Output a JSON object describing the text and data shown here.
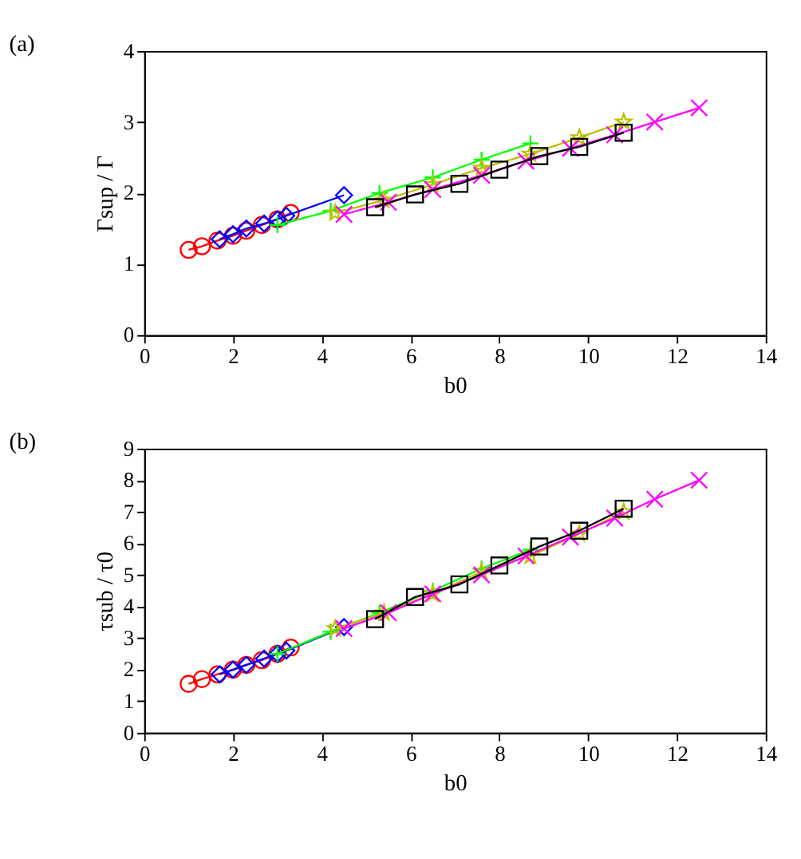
{
  "chart_data": [
    {
      "type": "line",
      "title": "(a)",
      "xlabel": "b0",
      "ylabel": "Γsup / Γ",
      "xlim": [
        0,
        14
      ],
      "xticks": [
        0,
        2,
        4,
        6,
        8,
        10,
        12,
        14
      ],
      "ylim": [
        0,
        4
      ],
      "yticks": [
        0,
        1,
        2,
        3,
        4
      ],
      "grid": false,
      "series": [
        {
          "color": "#ff0000",
          "marker": "circle",
          "x": [
            1.0,
            1.3,
            1.65,
            2.0,
            2.3,
            2.65,
            3.0,
            3.3
          ],
          "values": [
            1.2,
            1.25,
            1.33,
            1.4,
            1.47,
            1.55,
            1.63,
            1.72
          ]
        },
        {
          "color": "#0000ff",
          "marker": "diamond",
          "x": [
            1.7,
            2.0,
            2.3,
            2.7,
            3.0,
            3.2,
            4.5
          ],
          "values": [
            1.35,
            1.42,
            1.5,
            1.57,
            1.63,
            1.68,
            1.97
          ]
        },
        {
          "color": "#00ff00",
          "marker": "plus",
          "x": [
            3.0,
            4.2,
            5.3,
            6.5,
            7.6,
            8.7
          ],
          "values": [
            1.55,
            1.75,
            2.0,
            2.22,
            2.47,
            2.7
          ]
        },
        {
          "color": "#bfbf00",
          "marker": "star",
          "x": [
            4.3,
            5.4,
            6.5,
            7.6,
            8.7,
            9.8,
            10.8
          ],
          "values": [
            1.72,
            1.9,
            2.12,
            2.35,
            2.55,
            2.78,
            3.0
          ]
        },
        {
          "color": "#ff00ff",
          "marker": "x",
          "x": [
            4.5,
            5.5,
            6.5,
            7.6,
            8.6,
            9.6,
            10.6,
            11.5,
            12.5
          ],
          "values": [
            1.7,
            1.87,
            2.05,
            2.25,
            2.45,
            2.63,
            2.82,
            3.0,
            3.2
          ]
        },
        {
          "color": "#000000",
          "marker": "square",
          "x": [
            5.2,
            6.1,
            7.1,
            8.0,
            8.9,
            9.8,
            10.8
          ],
          "values": [
            1.8,
            1.98,
            2.13,
            2.33,
            2.52,
            2.65,
            2.85
          ]
        }
      ]
    },
    {
      "type": "line",
      "title": "(b)",
      "xlabel": "b0",
      "ylabel": "τsub / τ0",
      "xlim": [
        0,
        14
      ],
      "xticks": [
        0,
        2,
        4,
        6,
        8,
        10,
        12,
        14
      ],
      "ylim": [
        0,
        9
      ],
      "yticks": [
        0,
        1,
        2,
        3,
        4,
        5,
        6,
        7,
        8,
        9
      ],
      "grid": false,
      "series": [
        {
          "color": "#ff0000",
          "marker": "circle",
          "x": [
            1.0,
            1.3,
            1.65,
            2.0,
            2.3,
            2.65,
            3.0,
            3.3
          ],
          "values": [
            1.55,
            1.7,
            1.85,
            2.0,
            2.15,
            2.3,
            2.5,
            2.7
          ]
        },
        {
          "color": "#0000ff",
          "marker": "diamond",
          "x": [
            1.7,
            2.0,
            2.3,
            2.7,
            3.0,
            3.2,
            4.5
          ],
          "values": [
            1.85,
            2.0,
            2.15,
            2.35,
            2.5,
            2.6,
            3.35
          ]
        },
        {
          "color": "#00ff00",
          "marker": "plus",
          "x": [
            3.0,
            4.2,
            5.3,
            6.5,
            7.6,
            8.7
          ],
          "values": [
            2.5,
            3.2,
            3.8,
            4.5,
            5.2,
            5.8
          ]
        },
        {
          "color": "#bfbf00",
          "marker": "star",
          "x": [
            4.3,
            5.4,
            6.5,
            7.6,
            8.7,
            9.8,
            10.8
          ],
          "values": [
            3.3,
            3.8,
            4.4,
            5.1,
            5.6,
            6.3,
            7.0
          ]
        },
        {
          "color": "#ff00ff",
          "marker": "x",
          "x": [
            4.5,
            5.5,
            6.5,
            7.6,
            8.6,
            9.6,
            10.6,
            11.5,
            12.5
          ],
          "values": [
            3.3,
            3.8,
            4.4,
            5.0,
            5.6,
            6.2,
            6.8,
            7.4,
            8.0
          ]
        },
        {
          "color": "#000000",
          "marker": "square",
          "x": [
            5.2,
            6.1,
            7.1,
            8.0,
            8.9,
            9.8,
            10.8
          ],
          "values": [
            3.6,
            4.3,
            4.7,
            5.3,
            5.9,
            6.4,
            7.1
          ]
        }
      ]
    }
  ]
}
